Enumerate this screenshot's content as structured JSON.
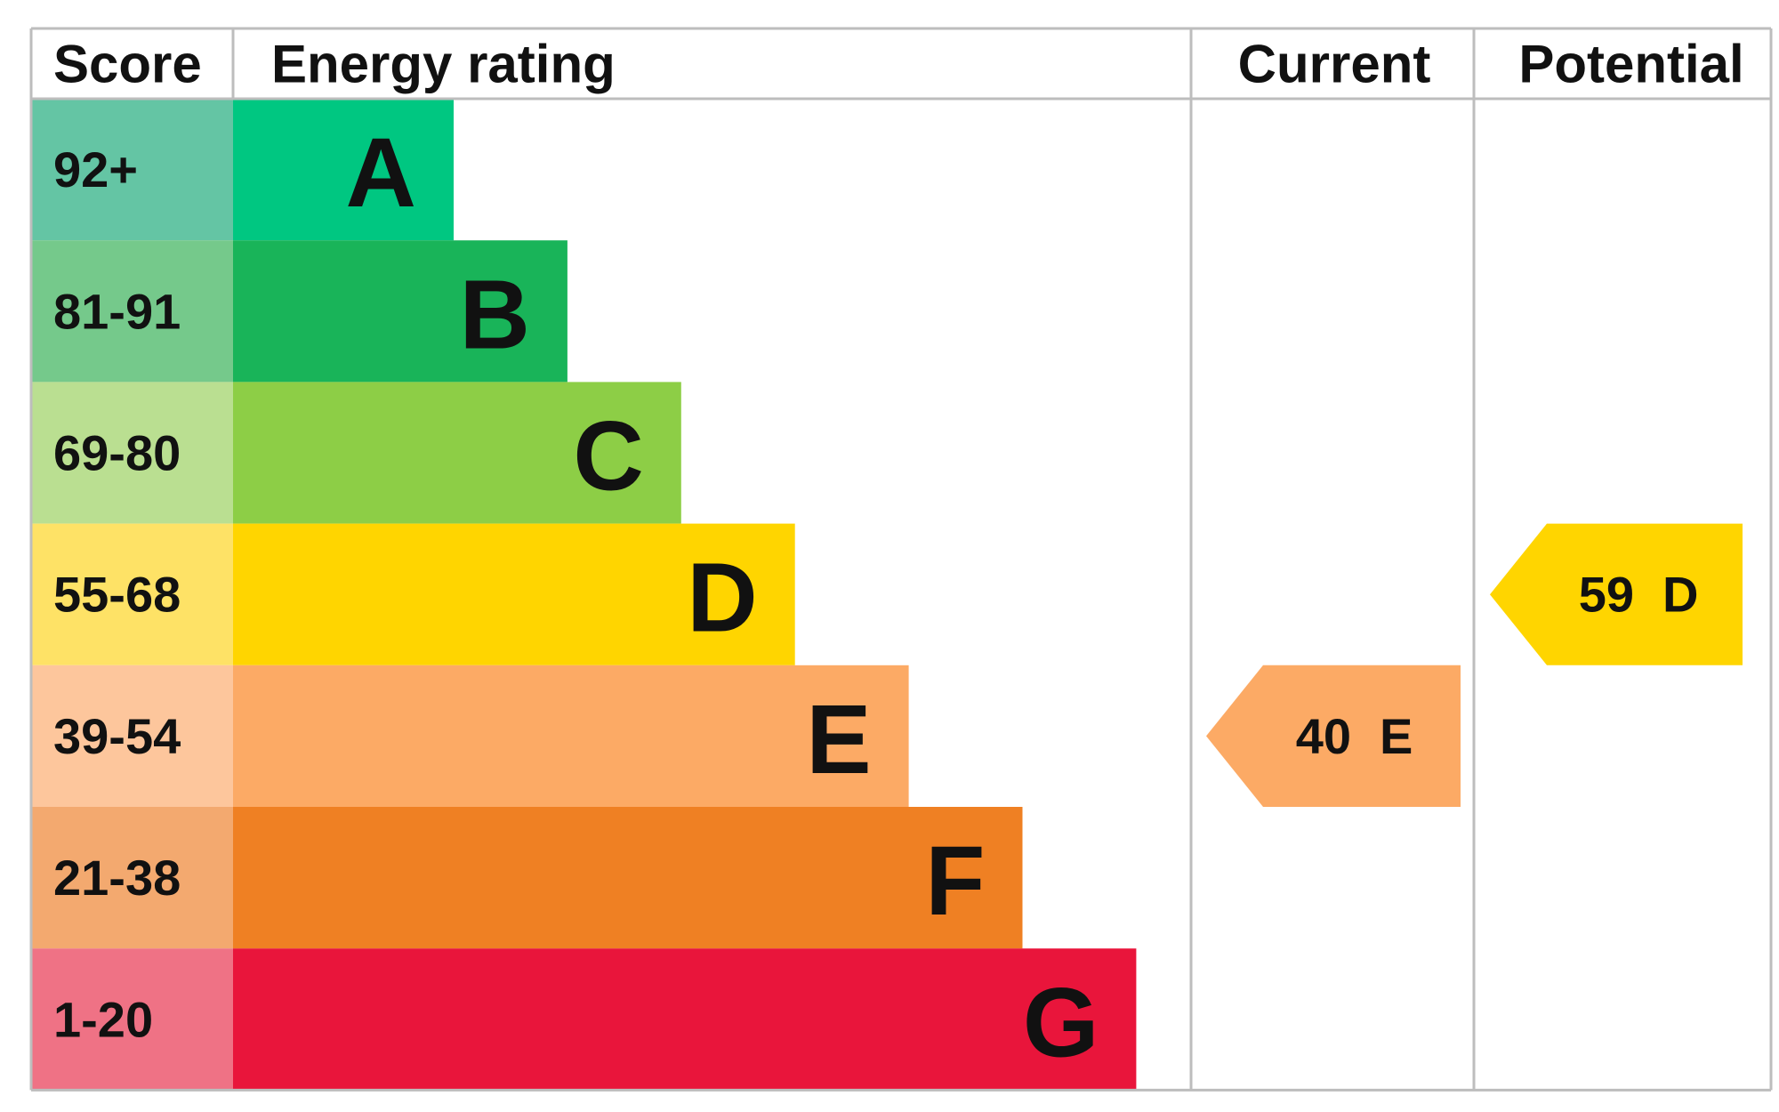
{
  "headers": {
    "score": "Score",
    "rating": "Energy rating",
    "current": "Current",
    "potential": "Potential"
  },
  "bands": [
    {
      "score": "92+",
      "letter": "A",
      "color": "#00c781",
      "score_color": "#64c5a4"
    },
    {
      "score": "81-91",
      "letter": "B",
      "color": "#19b459",
      "score_color": "#75c98b"
    },
    {
      "score": "69-80",
      "letter": "C",
      "color": "#8dce46",
      "score_color": "#badf91"
    },
    {
      "score": "55-68",
      "letter": "D",
      "color": "#ffd500",
      "score_color": "#fee266"
    },
    {
      "score": "39-54",
      "letter": "E",
      "color": "#fcaa65",
      "score_color": "#fdc69c"
    },
    {
      "score": "21-38",
      "letter": "F",
      "color": "#ef8023",
      "score_color": "#f3a96f"
    },
    {
      "score": "1-20",
      "letter": "G",
      "color": "#e9153b",
      "score_color": "#ef7285"
    }
  ],
  "current": {
    "value": 40,
    "letter": "E",
    "color": "#fcaa65"
  },
  "potential": {
    "value": 59,
    "letter": "D",
    "color": "#ffd500"
  }
}
